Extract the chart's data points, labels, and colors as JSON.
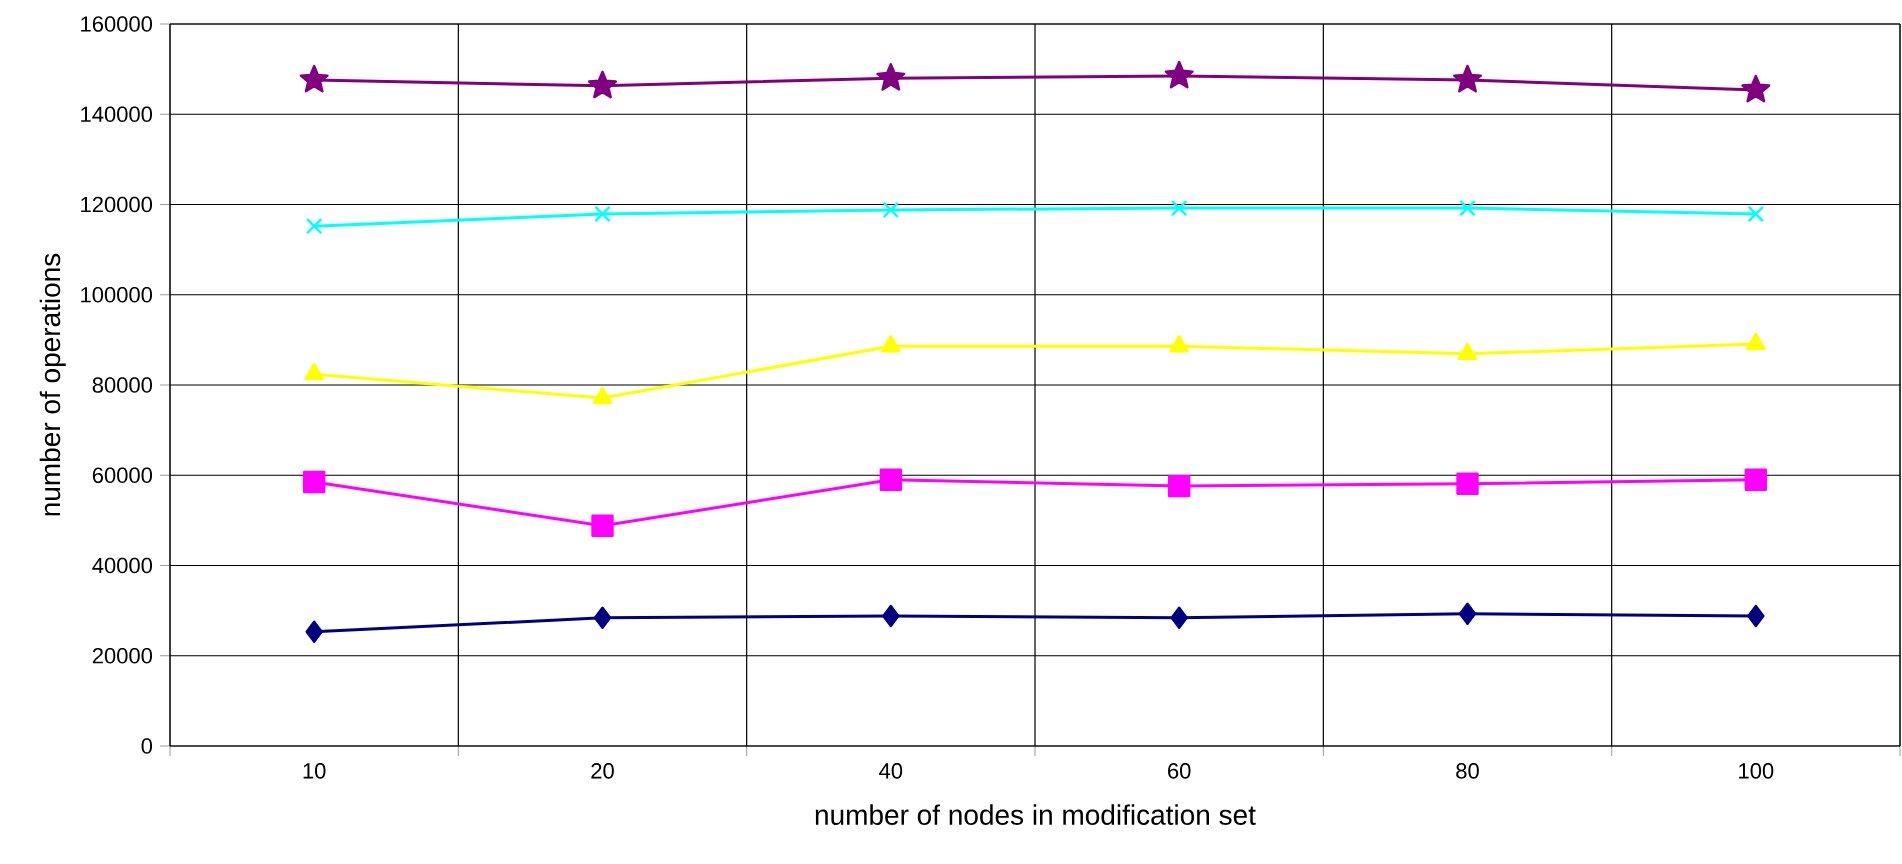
{
  "chart_data": {
    "type": "line",
    "xlabel": "number of nodes in modification set",
    "ylabel": "number of operations",
    "categories": [
      "10",
      "20",
      "40",
      "60",
      "80",
      "100"
    ],
    "ylim": [
      0,
      160000
    ],
    "yticks": [
      0,
      20000,
      40000,
      60000,
      80000,
      100000,
      120000,
      140000,
      160000
    ],
    "grid": true,
    "series": [
      {
        "color": "#000080",
        "marker": "diamond",
        "values": [
          25300,
          28400,
          28800,
          28400,
          29300,
          28800
        ]
      },
      {
        "color": "#ff00ff",
        "marker": "square",
        "values": [
          58500,
          48800,
          59000,
          57600,
          58100,
          59000
        ]
      },
      {
        "color": "#ffff00",
        "marker": "triangle",
        "values": [
          82400,
          77100,
          88600,
          88600,
          86900,
          89100
        ]
      },
      {
        "color": "#00ffff",
        "marker": "cross",
        "values": [
          115200,
          117900,
          118800,
          119200,
          119200,
          117900
        ]
      },
      {
        "color": "#800080",
        "marker": "star",
        "values": [
          147600,
          146300,
          148000,
          148500,
          147600,
          145400
        ]
      }
    ]
  }
}
